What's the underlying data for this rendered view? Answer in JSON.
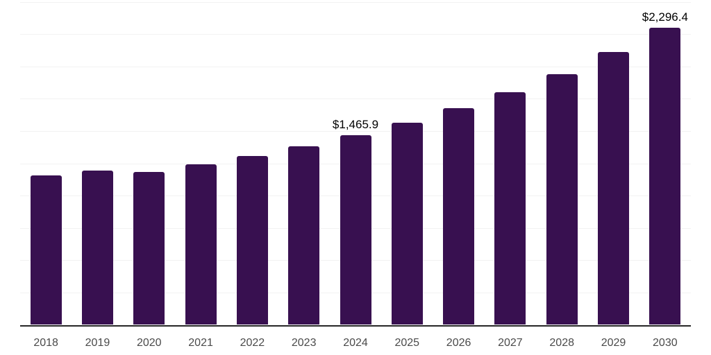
{
  "chart_data": {
    "type": "bar",
    "title": "",
    "xlabel": "",
    "ylabel": "",
    "categories": [
      "2018",
      "2019",
      "2020",
      "2021",
      "2022",
      "2023",
      "2024",
      "2025",
      "2026",
      "2027",
      "2028",
      "2029",
      "2030"
    ],
    "values": [
      1155,
      1195,
      1185,
      1240,
      1305,
      1380,
      1465.9,
      1565,
      1675,
      1800,
      1940,
      2110,
      2296.4
    ],
    "data_labels": [
      {
        "index": 6,
        "text": "$1,465.9"
      },
      {
        "index": 12,
        "text": "$2,296.4"
      }
    ],
    "ylim": [
      0,
      2500
    ],
    "grid_interval": 250,
    "grid": true,
    "legend": false,
    "y_axis_labels_visible": false,
    "colors": {
      "bar": "#381050",
      "axis_line": "#262626",
      "gridline": "#f2f2f2",
      "tick_label": "#4a4a4a",
      "data_label": "#000000",
      "background": "#ffffff"
    }
  }
}
